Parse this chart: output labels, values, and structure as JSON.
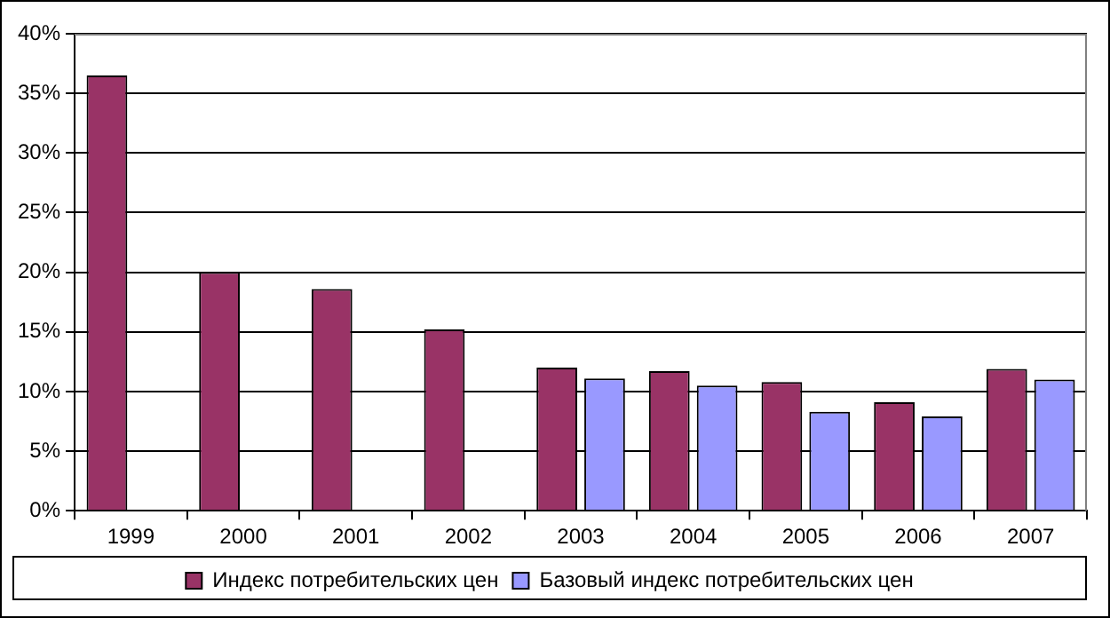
{
  "chart_data": {
    "type": "bar",
    "categories": [
      "1999",
      "2000",
      "2001",
      "2002",
      "2003",
      "2004",
      "2005",
      "2006",
      "2007"
    ],
    "series": [
      {
        "name": "Индекс потребительских цен",
        "color": "#993366",
        "values": [
          36.5,
          20.0,
          18.6,
          15.2,
          12.0,
          11.7,
          10.8,
          9.1,
          11.9
        ]
      },
      {
        "name": "Базовый индекс потребительских цен",
        "color": "#9999ff",
        "values": [
          null,
          null,
          null,
          null,
          11.1,
          10.5,
          8.3,
          7.9,
          11.0
        ]
      }
    ],
    "ylim": [
      0,
      40
    ],
    "yticks": [
      {
        "value": 0,
        "label": "0%"
      },
      {
        "value": 5,
        "label": "5%"
      },
      {
        "value": 10,
        "label": "10%"
      },
      {
        "value": 15,
        "label": "15%"
      },
      {
        "value": 20,
        "label": "20%"
      },
      {
        "value": 25,
        "label": "25%"
      },
      {
        "value": 30,
        "label": "30%"
      },
      {
        "value": 35,
        "label": "35%"
      },
      {
        "value": 40,
        "label": "40%"
      }
    ],
    "grid": "y",
    "legend": "bottom"
  }
}
